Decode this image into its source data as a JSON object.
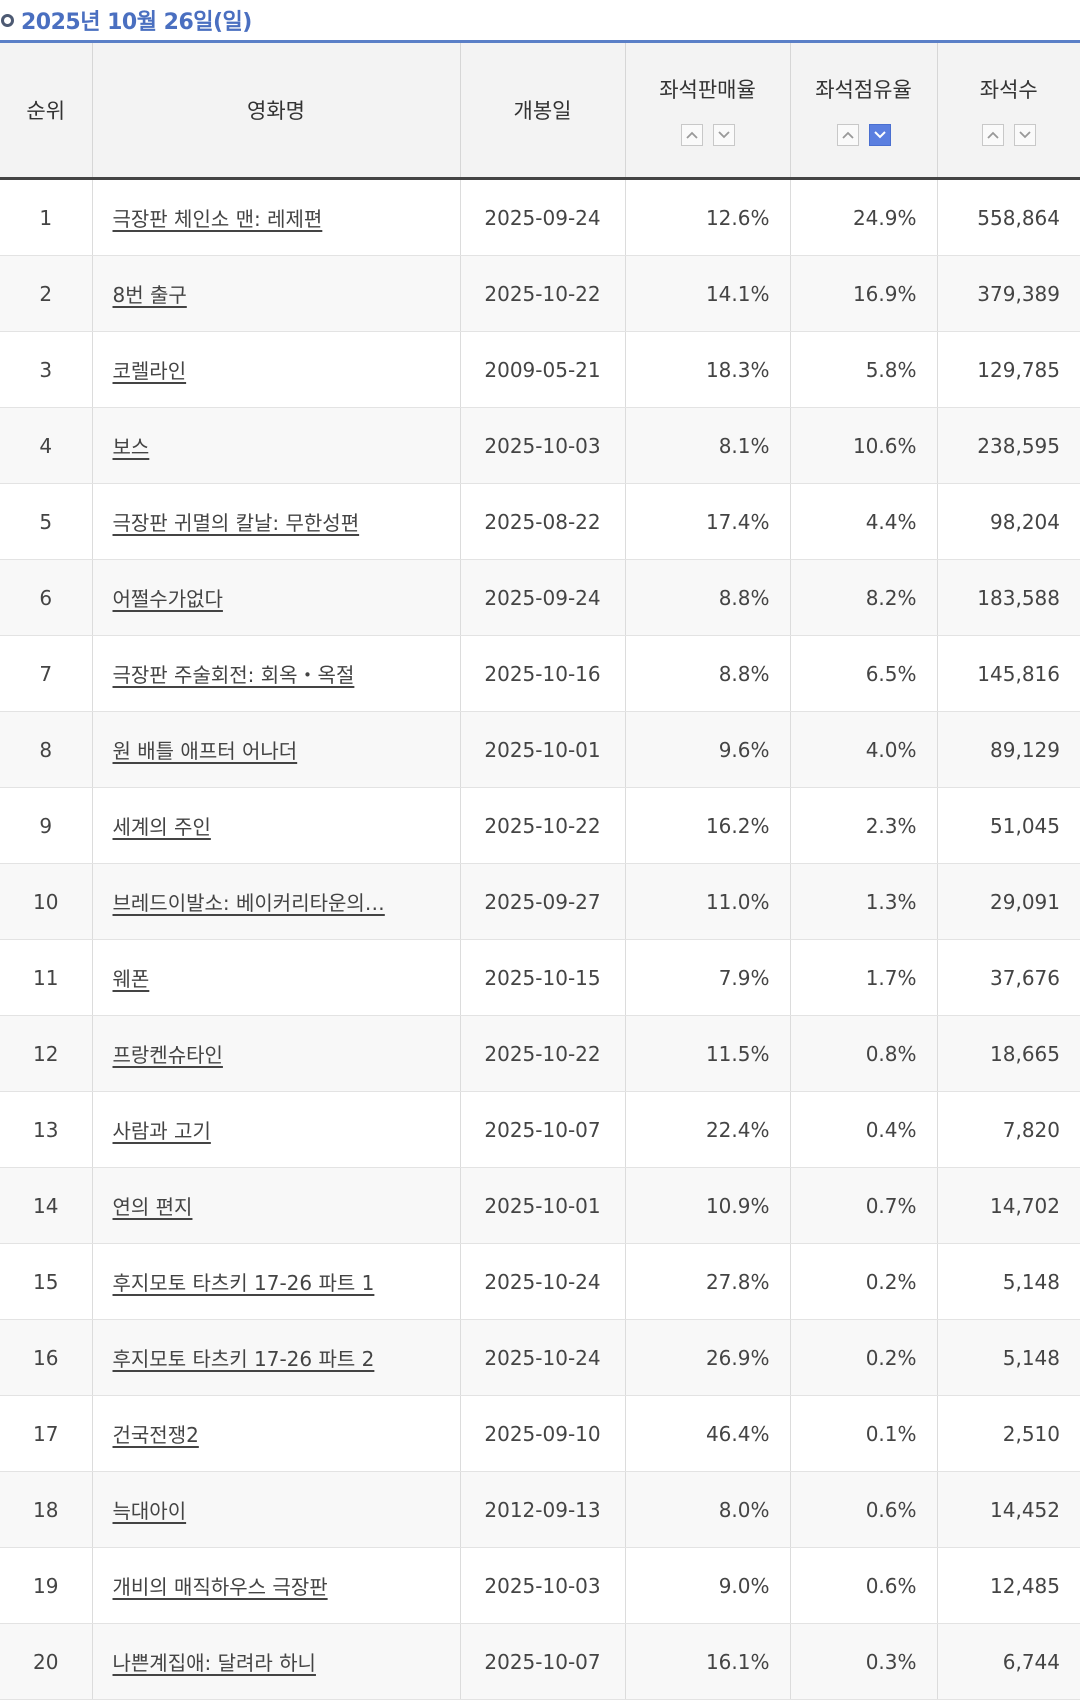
{
  "header": {
    "date": "2025년 10월 26일(일)"
  },
  "table": {
    "columns": {
      "rank": "순위",
      "title": "영화명",
      "release": "개봉일",
      "sales_rate": "좌석판매율",
      "share": "좌석점유율",
      "seats": "좌석수"
    },
    "active_sort": "share-desc",
    "rows": [
      {
        "rank": "1",
        "title": "극장판 체인소 맨: 레제편",
        "release": "2025-09-24",
        "sales_rate": "12.6%",
        "share": "24.9%",
        "seats": "558,864"
      },
      {
        "rank": "2",
        "title": "8번 출구",
        "release": "2025-10-22",
        "sales_rate": "14.1%",
        "share": "16.9%",
        "seats": "379,389"
      },
      {
        "rank": "3",
        "title": "코렐라인",
        "release": "2009-05-21",
        "sales_rate": "18.3%",
        "share": "5.8%",
        "seats": "129,785"
      },
      {
        "rank": "4",
        "title": "보스",
        "release": "2025-10-03",
        "sales_rate": "8.1%",
        "share": "10.6%",
        "seats": "238,595"
      },
      {
        "rank": "5",
        "title": "극장판 귀멸의 칼날: 무한성편",
        "release": "2025-08-22",
        "sales_rate": "17.4%",
        "share": "4.4%",
        "seats": "98,204"
      },
      {
        "rank": "6",
        "title": "어쩔수가없다",
        "release": "2025-09-24",
        "sales_rate": "8.8%",
        "share": "8.2%",
        "seats": "183,588"
      },
      {
        "rank": "7",
        "title": "극장판 주술회전: 회옥・옥절",
        "release": "2025-10-16",
        "sales_rate": "8.8%",
        "share": "6.5%",
        "seats": "145,816"
      },
      {
        "rank": "8",
        "title": "원 배틀 애프터 어나더",
        "release": "2025-10-01",
        "sales_rate": "9.6%",
        "share": "4.0%",
        "seats": "89,129"
      },
      {
        "rank": "9",
        "title": "세계의 주인",
        "release": "2025-10-22",
        "sales_rate": "16.2%",
        "share": "2.3%",
        "seats": "51,045"
      },
      {
        "rank": "10",
        "title": "브레드이발소: 베이커리타운의…",
        "release": "2025-09-27",
        "sales_rate": "11.0%",
        "share": "1.3%",
        "seats": "29,091"
      },
      {
        "rank": "11",
        "title": "웨폰",
        "release": "2025-10-15",
        "sales_rate": "7.9%",
        "share": "1.7%",
        "seats": "37,676"
      },
      {
        "rank": "12",
        "title": "프랑켄슈타인",
        "release": "2025-10-22",
        "sales_rate": "11.5%",
        "share": "0.8%",
        "seats": "18,665"
      },
      {
        "rank": "13",
        "title": "사람과 고기",
        "release": "2025-10-07",
        "sales_rate": "22.4%",
        "share": "0.4%",
        "seats": "7,820"
      },
      {
        "rank": "14",
        "title": "연의 편지",
        "release": "2025-10-01",
        "sales_rate": "10.9%",
        "share": "0.7%",
        "seats": "14,702"
      },
      {
        "rank": "15",
        "title": "후지모토 타츠키 17-26 파트 1",
        "release": "2025-10-24",
        "sales_rate": "27.8%",
        "share": "0.2%",
        "seats": "5,148"
      },
      {
        "rank": "16",
        "title": "후지모토 타츠키 17-26 파트 2",
        "release": "2025-10-24",
        "sales_rate": "26.9%",
        "share": "0.2%",
        "seats": "5,148"
      },
      {
        "rank": "17",
        "title": "건국전쟁2",
        "release": "2025-09-10",
        "sales_rate": "46.4%",
        "share": "0.1%",
        "seats": "2,510"
      },
      {
        "rank": "18",
        "title": "늑대아이",
        "release": "2012-09-13",
        "sales_rate": "8.0%",
        "share": "0.6%",
        "seats": "14,452"
      },
      {
        "rank": "19",
        "title": "개비의 매직하우스 극장판",
        "release": "2025-10-03",
        "sales_rate": "9.0%",
        "share": "0.6%",
        "seats": "12,485"
      },
      {
        "rank": "20",
        "title": "나쁜계집애: 달려라 하니",
        "release": "2025-10-07",
        "sales_rate": "16.1%",
        "share": "0.3%",
        "seats": "6,744"
      }
    ]
  },
  "colors": {
    "accent": "#4a6fc0",
    "header_bg": "#f3f3f3",
    "sort_active": "#5b7fe0"
  },
  "icons": {
    "bullet": "circle-bullet-icon",
    "sort_up": "chevron-up-icon",
    "sort_down": "chevron-down-icon"
  }
}
